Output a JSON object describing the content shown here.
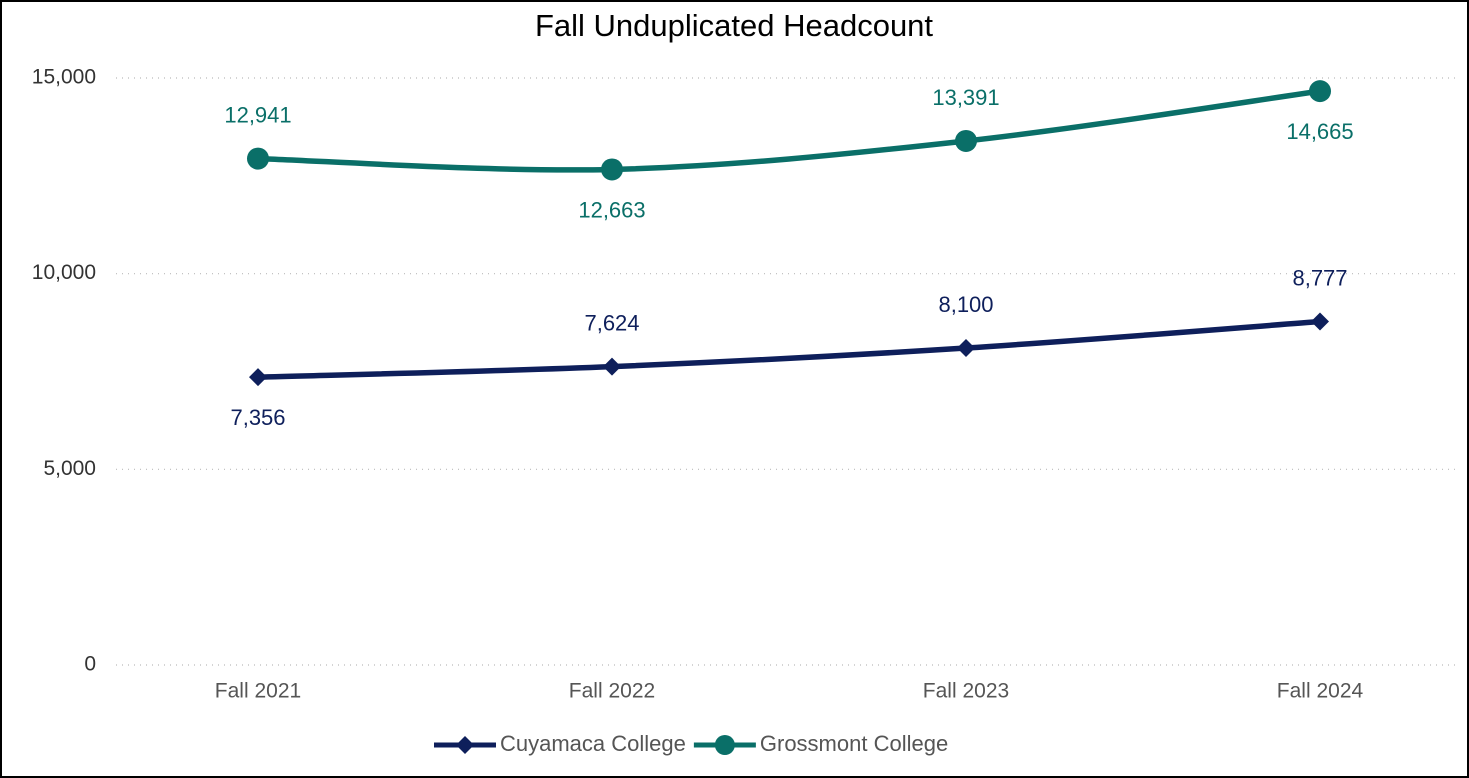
{
  "chart_data": {
    "type": "line",
    "title": "Fall Unduplicated Headcount",
    "categories": [
      "Fall 2021",
      "Fall 2022",
      "Fall 2023",
      "Fall 2024"
    ],
    "series": [
      {
        "name": "Cuyamaca College",
        "color": "#0e1f5b",
        "marker": "diamond",
        "values": [
          7356,
          7624,
          8100,
          8777
        ],
        "value_labels": [
          "7,356",
          "7,624",
          "8,100",
          "8,777"
        ]
      },
      {
        "name": "Grossmont College",
        "color": "#0a6f68",
        "marker": "circle",
        "values": [
          12941,
          12663,
          13391,
          14665
        ],
        "value_labels": [
          "12,941",
          "12,663",
          "13,391",
          "14,665"
        ]
      }
    ],
    "ylim": [
      0,
      15000
    ],
    "yticks": [
      0,
      {
        "value": 5000,
        "label": "5,000"
      },
      {
        "value": 10000,
        "label": "10,000"
      },
      {
        "value": 15000,
        "label": "15,000"
      }
    ],
    "grid": true,
    "legend": "bottom"
  }
}
